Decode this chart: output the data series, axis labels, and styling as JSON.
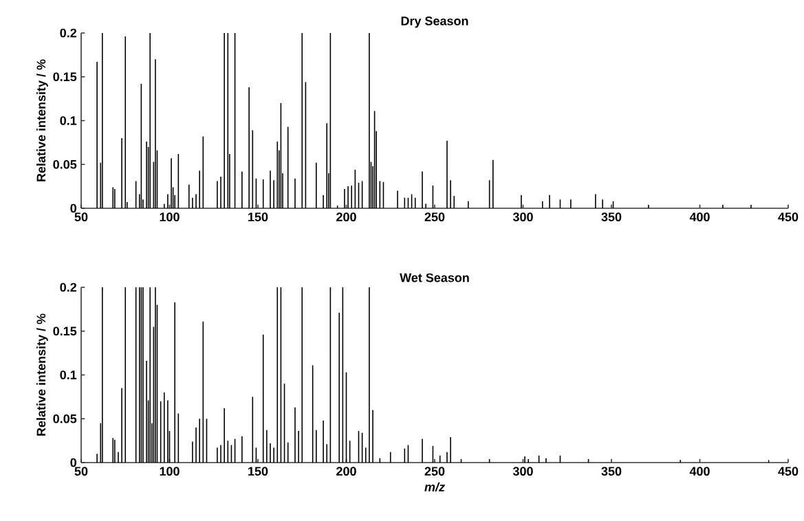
{
  "chart_data": [
    {
      "type": "bar",
      "title": "Dry Season",
      "ylabel": "Relative intensity / %",
      "color": "#000000",
      "xlim": [
        50,
        450
      ],
      "ylim": [
        0,
        0.2
      ],
      "xticks": [
        50,
        100,
        150,
        200,
        250,
        300,
        350,
        400,
        450
      ],
      "yticks": [
        0,
        0.05,
        0.1,
        0.15,
        0.2
      ],
      "x": [
        59,
        61,
        62,
        68,
        69,
        73,
        75,
        76,
        81,
        83,
        84,
        85,
        87,
        88,
        89,
        91,
        92,
        93,
        97,
        99,
        101,
        102,
        103,
        105,
        111,
        113,
        115,
        117,
        119,
        127,
        129,
        131,
        133,
        134,
        137,
        141,
        145,
        147,
        149,
        153,
        157,
        159,
        161,
        162,
        163,
        164,
        167,
        171,
        175,
        177,
        183,
        187,
        189,
        190,
        191,
        195,
        199,
        201,
        203,
        205,
        207,
        209,
        213,
        214,
        215,
        216,
        217,
        219,
        221,
        229,
        233,
        235,
        237,
        239,
        243,
        245,
        249,
        257,
        259,
        261,
        269,
        281,
        283,
        299,
        311,
        315,
        321,
        327,
        341,
        345,
        351,
        371,
        413,
        429
      ],
      "values": [
        0.167,
        0.052,
        0.2,
        0.024,
        0.022,
        0.08,
        0.196,
        0.007,
        0.031,
        0.016,
        0.142,
        0.01,
        0.076,
        0.07,
        0.2,
        0.053,
        0.17,
        0.066,
        0.005,
        0.016,
        0.057,
        0.024,
        0.015,
        0.062,
        0.027,
        0.012,
        0.016,
        0.043,
        0.082,
        0.031,
        0.036,
        0.2,
        0.2,
        0.062,
        0.2,
        0.042,
        0.138,
        0.089,
        0.034,
        0.033,
        0.043,
        0.032,
        0.076,
        0.066,
        0.12,
        0.04,
        0.093,
        0.034,
        0.2,
        0.144,
        0.052,
        0.015,
        0.097,
        0.04,
        0.2,
        0.003,
        0.022,
        0.025,
        0.026,
        0.044,
        0.029,
        0.031,
        0.2,
        0.053,
        0.048,
        0.111,
        0.088,
        0.031,
        0.03,
        0.02,
        0.012,
        0.012,
        0.016,
        0.012,
        0.042,
        0.005,
        0.026,
        0.077,
        0.032,
        0.014,
        0.008,
        0.032,
        0.055,
        0.015,
        0.008,
        0.015,
        0.01,
        0.01,
        0.016,
        0.01,
        0.008,
        0.004,
        0.004,
        0.004
      ]
    },
    {
      "type": "bar",
      "title": "Wet Season",
      "xlabel": "m/z",
      "ylabel": "Relative intensity / %",
      "color": "#000000",
      "xlim": [
        50,
        450
      ],
      "ylim": [
        0,
        0.2
      ],
      "xticks": [
        50,
        100,
        150,
        200,
        250,
        300,
        350,
        400,
        450
      ],
      "yticks": [
        0,
        0.05,
        0.1,
        0.15,
        0.2
      ],
      "x": [
        59,
        61,
        62,
        68,
        69,
        71,
        73,
        75,
        81,
        83,
        84,
        85,
        87,
        88,
        89,
        90,
        91,
        92,
        93,
        95,
        97,
        99,
        100,
        103,
        105,
        113,
        115,
        117,
        119,
        121,
        127,
        129,
        131,
        133,
        135,
        137,
        141,
        147,
        149,
        153,
        155,
        157,
        159,
        161,
        163,
        165,
        167,
        171,
        173,
        175,
        181,
        183,
        187,
        189,
        191,
        196,
        198,
        200,
        202,
        207,
        209,
        211,
        213,
        215,
        219,
        225,
        233,
        235,
        243,
        249,
        253,
        257,
        259,
        265,
        281,
        301,
        303,
        309,
        313,
        321,
        337,
        389,
        439
      ],
      "values": [
        0.01,
        0.045,
        0.2,
        0.028,
        0.026,
        0.012,
        0.085,
        0.2,
        0.2,
        0.2,
        0.2,
        0.2,
        0.116,
        0.071,
        0.2,
        0.045,
        0.155,
        0.2,
        0.18,
        0.07,
        0.08,
        0.071,
        0.036,
        0.183,
        0.056,
        0.024,
        0.04,
        0.05,
        0.161,
        0.05,
        0.017,
        0.02,
        0.062,
        0.025,
        0.02,
        0.027,
        0.03,
        0.075,
        0.017,
        0.146,
        0.037,
        0.022,
        0.017,
        0.2,
        0.2,
        0.09,
        0.023,
        0.063,
        0.036,
        0.2,
        0.111,
        0.037,
        0.048,
        0.021,
        0.2,
        0.171,
        0.2,
        0.103,
        0.025,
        0.036,
        0.034,
        0.017,
        0.2,
        0.06,
        0.005,
        0.012,
        0.016,
        0.02,
        0.027,
        0.019,
        0.008,
        0.012,
        0.029,
        0.004,
        0.004,
        0.007,
        0.004,
        0.008,
        0.005,
        0.008,
        0.004,
        0.003,
        0.003
      ]
    }
  ]
}
